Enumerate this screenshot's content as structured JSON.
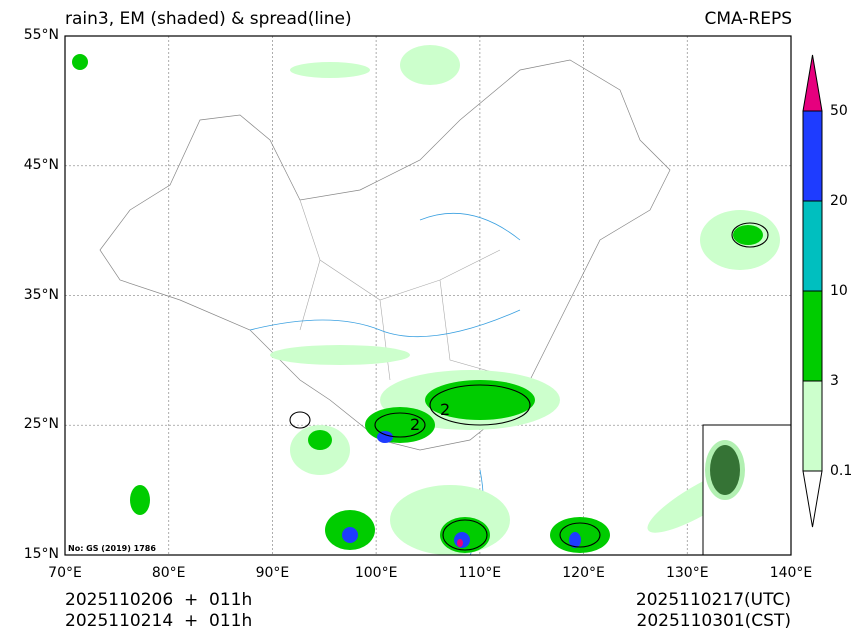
{
  "header": {
    "title_left": "rain3, EM (shaded) & spread(line)",
    "title_right": "CMA-REPS"
  },
  "map": {
    "lat_ticks": [
      "55°N",
      "45°N",
      "35°N",
      "25°N",
      "15°N"
    ],
    "lon_ticks": [
      "70°E",
      "80°E",
      "90°E",
      "100°E",
      "110°E",
      "120°E",
      "130°E",
      "140°E"
    ],
    "extent": {
      "lon": [
        70,
        140
      ],
      "lat": [
        15,
        55
      ]
    },
    "map_number": "No: GS (2019) 1786",
    "contour_label": "2"
  },
  "colorbar": {
    "levels": [
      "0.1",
      "3",
      "10",
      "20",
      "50"
    ],
    "colors": [
      "#ffffff",
      "#ccffcc",
      "#00cc00",
      "#00bfbf",
      "#1e3cff",
      "#e6007e"
    ]
  },
  "footer": {
    "init_utc": "2025110206  +  011h",
    "init_cst": "2025110214  +  011h",
    "valid_utc": "2025110217(UTC)",
    "valid_cst": "2025110301(CST)"
  },
  "chart_data": {
    "type": "heatmap",
    "title": "rain3, EM (shaded) & spread(line)",
    "xlabel": "",
    "ylabel": "",
    "xlim": [
      70,
      140
    ],
    "ylim": [
      15,
      55
    ],
    "legend": {
      "placement": "right",
      "levels": [
        0.1,
        3,
        10,
        20,
        50
      ]
    },
    "grid": true
  }
}
